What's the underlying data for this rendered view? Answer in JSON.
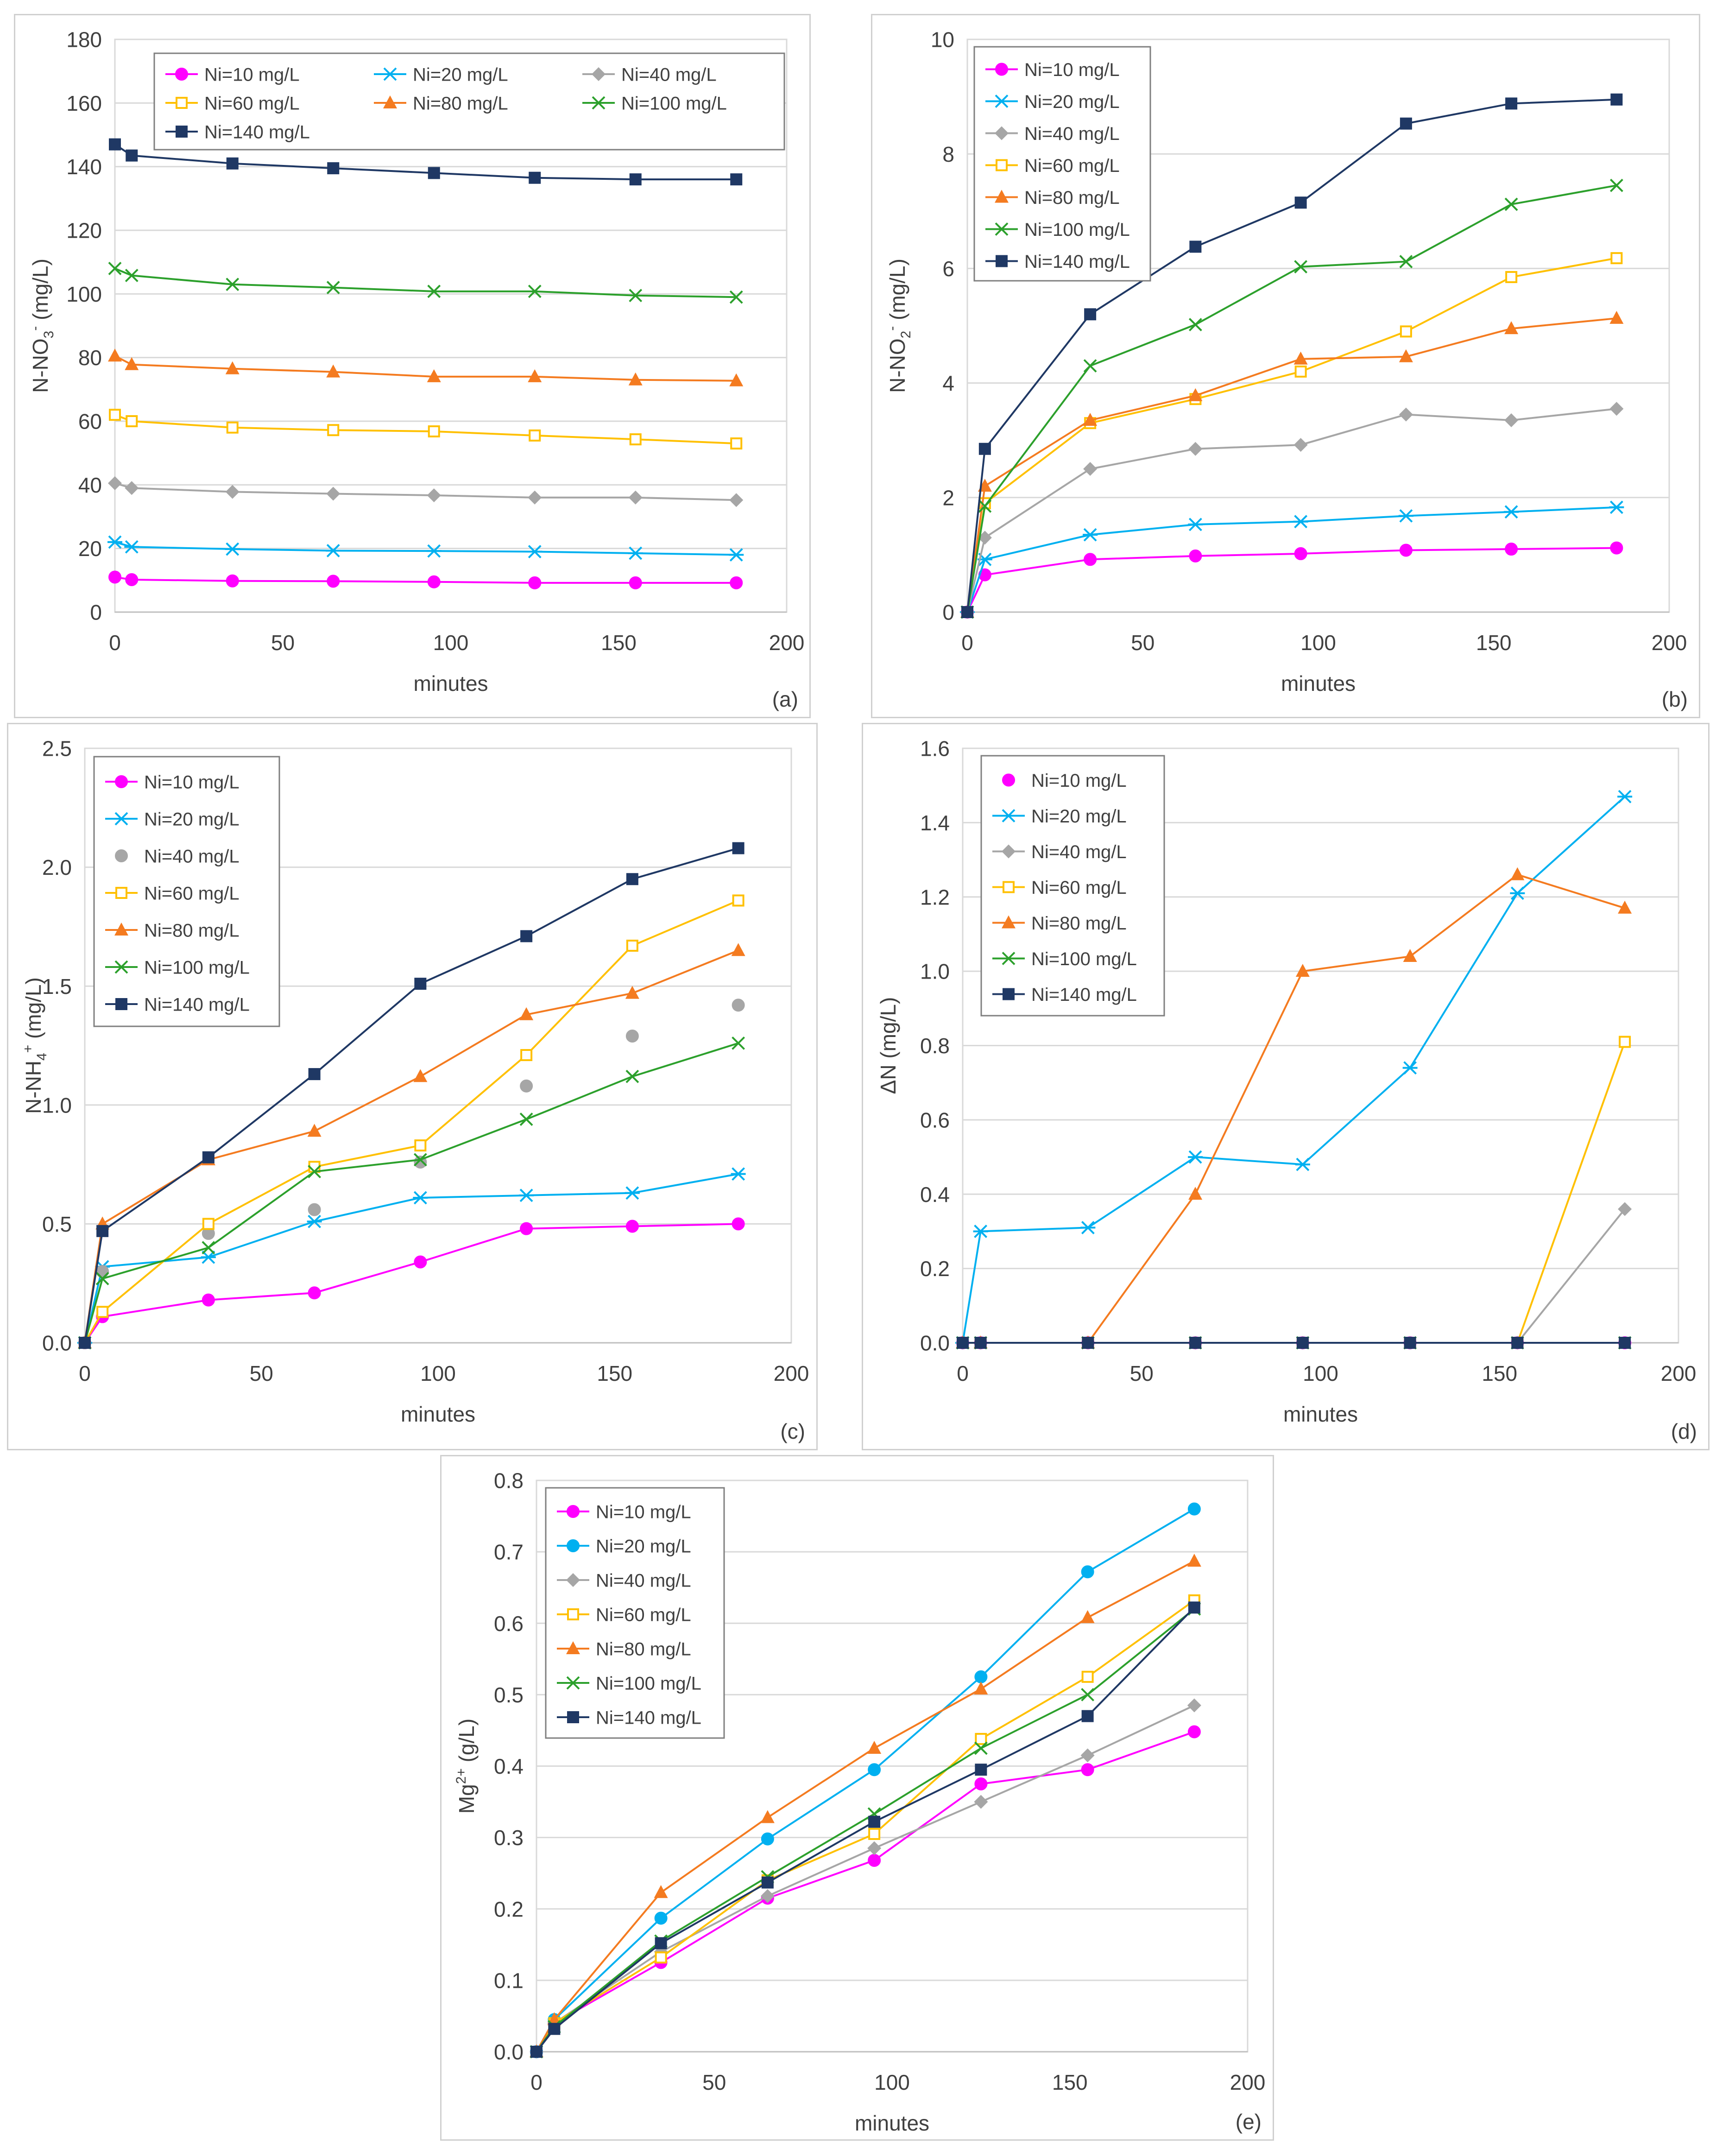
{
  "chart_data": [
    {
      "id": "a",
      "type": "line",
      "panel_label": "(a)",
      "xlabel": "minutes",
      "ylabel": "N-NO3- (mg/L)",
      "ylabel_base": "N-NO",
      "ylabel_sub": "3",
      "ylabel_sup": "-",
      "ylabel_tail": " (mg/L)",
      "xlim": [
        0,
        200
      ],
      "xticks": [
        0,
        50,
        100,
        150,
        200
      ],
      "ylim": [
        0,
        180
      ],
      "yticks": [
        0,
        20,
        40,
        60,
        80,
        100,
        120,
        140,
        160,
        180
      ],
      "ytick_labels": [
        "0",
        "20",
        "40",
        "60",
        "80",
        "100",
        "120",
        "140",
        "160",
        "180"
      ],
      "legend_columns": 3,
      "x": [
        0,
        5,
        35,
        65,
        95,
        125,
        155,
        185
      ],
      "series": [
        {
          "name": "Ni=10 mg/L",
          "color": "#ff00ff",
          "marker": "circle",
          "values": [
            11,
            10.2,
            9.8,
            9.7,
            9.5,
            9.2,
            9.2,
            9.2
          ]
        },
        {
          "name": "Ni=20 mg/L",
          "color": "#00b0f0",
          "marker": "asterisk",
          "values": [
            22,
            20.5,
            19.8,
            19.3,
            19.2,
            19,
            18.5,
            18
          ]
        },
        {
          "name": "Ni=40 mg/L",
          "color": "#a6a6a6",
          "marker": "diamond",
          "values": [
            40.5,
            39,
            37.8,
            37.2,
            36.7,
            36,
            36,
            35.2
          ]
        },
        {
          "name": "Ni=60 mg/L",
          "color": "#ffc000",
          "marker": "square-open",
          "values": [
            62,
            60,
            58,
            57.2,
            56.8,
            55.5,
            54.3,
            53
          ]
        },
        {
          "name": "Ni=80 mg/L",
          "color": "#f47b20",
          "marker": "triangle",
          "values": [
            80.5,
            77.8,
            76.5,
            75.5,
            74,
            74,
            73,
            72.7
          ]
        },
        {
          "name": "Ni=100 mg/L",
          "color": "#2ca02c",
          "marker": "x",
          "values": [
            108,
            105.8,
            103,
            102,
            100.8,
            100.8,
            99.5,
            99
          ]
        },
        {
          "name": "Ni=140 mg/L",
          "color": "#1f3864",
          "marker": "square",
          "values": [
            147,
            143.5,
            141,
            139.5,
            138,
            136.5,
            136,
            136
          ]
        }
      ]
    },
    {
      "id": "b",
      "type": "line",
      "panel_label": "(b)",
      "xlabel": "minutes",
      "ylabel": "N-NO2- (mg/L)",
      "ylabel_base": "N-NO",
      "ylabel_sub": "2",
      "ylabel_sup": "-",
      "ylabel_tail": " (mg/L)",
      "xlim": [
        0,
        200
      ],
      "xticks": [
        0,
        50,
        100,
        150,
        200
      ],
      "ylim": [
        0,
        10
      ],
      "yticks": [
        0,
        2,
        4,
        6,
        8,
        10
      ],
      "ytick_labels": [
        "0",
        "2",
        "4",
        "6",
        "8",
        "10"
      ],
      "legend_columns": 1,
      "x": [
        0,
        5,
        35,
        65,
        95,
        125,
        155,
        185
      ],
      "series": [
        {
          "name": "Ni=10 mg/L",
          "color": "#ff00ff",
          "marker": "circle",
          "values": [
            0,
            0.65,
            0.92,
            0.98,
            1.02,
            1.08,
            1.1,
            1.12
          ]
        },
        {
          "name": "Ni=20 mg/L",
          "color": "#00b0f0",
          "marker": "asterisk",
          "values": [
            0,
            0.92,
            1.35,
            1.53,
            1.58,
            1.68,
            1.75,
            1.83
          ]
        },
        {
          "name": "Ni=40 mg/L",
          "color": "#a6a6a6",
          "marker": "diamond",
          "values": [
            0,
            1.3,
            2.5,
            2.85,
            2.92,
            3.45,
            3.35,
            3.55
          ]
        },
        {
          "name": "Ni=60 mg/L",
          "color": "#ffc000",
          "marker": "square-open",
          "values": [
            0,
            1.9,
            3.3,
            3.72,
            4.2,
            4.9,
            5.85,
            6.18
          ]
        },
        {
          "name": "Ni=80 mg/L",
          "color": "#f47b20",
          "marker": "triangle",
          "values": [
            0,
            2.2,
            3.35,
            3.78,
            4.42,
            4.46,
            4.95,
            5.13
          ]
        },
        {
          "name": "Ni=100 mg/L",
          "color": "#2ca02c",
          "marker": "x",
          "values": [
            0,
            1.85,
            4.3,
            5.02,
            6.03,
            6.12,
            7.12,
            7.45
          ]
        },
        {
          "name": "Ni=140 mg/L",
          "color": "#1f3864",
          "marker": "square",
          "values": [
            0,
            2.85,
            5.2,
            6.38,
            7.15,
            8.53,
            8.88,
            8.95
          ]
        }
      ]
    },
    {
      "id": "c",
      "type": "line",
      "panel_label": "(c)",
      "xlabel": "minutes",
      "ylabel": "N-NH4+ (mg/L)",
      "ylabel_base": "N-NH",
      "ylabel_sub": "4",
      "ylabel_sup": "+",
      "ylabel_tail": " (mg/L)",
      "xlim": [
        0,
        200
      ],
      "xticks": [
        0,
        50,
        100,
        150,
        200
      ],
      "ylim": [
        0,
        2.5
      ],
      "yticks": [
        0,
        0.5,
        1.0,
        1.5,
        2.0,
        2.5
      ],
      "ytick_labels": [
        "0.0",
        "0.5",
        "1.0",
        "1.5",
        "2.0",
        "2.5"
      ],
      "legend_columns": 1,
      "x": [
        0,
        5,
        35,
        65,
        95,
        125,
        155,
        185
      ],
      "series": [
        {
          "name": "Ni=10 mg/L",
          "color": "#ff00ff",
          "marker": "circle",
          "values": [
            0,
            0.11,
            0.18,
            0.21,
            0.34,
            0.48,
            0.49,
            0.5
          ]
        },
        {
          "name": "Ni=20 mg/L",
          "color": "#00b0f0",
          "marker": "asterisk",
          "values": [
            0,
            0.32,
            0.36,
            0.51,
            0.61,
            0.62,
            0.63,
            0.71
          ]
        },
        {
          "name": "Ni=40 mg/L",
          "color": "#a6a6a6",
          "marker": "dot",
          "line": false,
          "values": [
            0,
            0.3,
            0.46,
            0.56,
            0.76,
            1.08,
            1.29,
            1.42
          ]
        },
        {
          "name": "Ni=60 mg/L",
          "color": "#ffc000",
          "marker": "square-open",
          "values": [
            0,
            0.13,
            0.5,
            0.74,
            0.83,
            1.21,
            1.67,
            1.86
          ]
        },
        {
          "name": "Ni=80 mg/L",
          "color": "#f47b20",
          "marker": "triangle",
          "values": [
            0,
            0.5,
            0.77,
            0.89,
            1.12,
            1.38,
            1.47,
            1.65
          ]
        },
        {
          "name": "Ni=100 mg/L",
          "color": "#2ca02c",
          "marker": "x",
          "values": [
            0,
            0.27,
            0.4,
            0.72,
            0.77,
            0.94,
            1.12,
            1.26
          ]
        },
        {
          "name": "Ni=140 mg/L",
          "color": "#1f3864",
          "marker": "square",
          "values": [
            0,
            0.47,
            0.78,
            1.13,
            1.51,
            1.71,
            1.95,
            2.08
          ]
        }
      ]
    },
    {
      "id": "d",
      "type": "line",
      "panel_label": "(d)",
      "xlabel": "minutes",
      "ylabel": "ΔN (mg/L)",
      "ylabel_base": "ΔN (mg/L)",
      "ylabel_sub": "",
      "ylabel_sup": "",
      "ylabel_tail": "",
      "xlim": [
        0,
        200
      ],
      "xticks": [
        0,
        50,
        100,
        150,
        200
      ],
      "ylim": [
        0,
        1.6
      ],
      "yticks": [
        0,
        0.2,
        0.4,
        0.6,
        0.8,
        1.0,
        1.2,
        1.4,
        1.6
      ],
      "ytick_labels": [
        "0.0",
        "0.2",
        "0.4",
        "0.6",
        "0.8",
        "1.0",
        "1.2",
        "1.4",
        "1.6"
      ],
      "legend_columns": 1,
      "x": [
        0,
        5,
        35,
        65,
        95,
        125,
        155,
        185
      ],
      "series": [
        {
          "name": "Ni=10 mg/L",
          "color": "#ff00ff",
          "marker": "circle",
          "line": false,
          "values": [
            0,
            0,
            0,
            0,
            0,
            0,
            0,
            0
          ]
        },
        {
          "name": "Ni=20 mg/L",
          "color": "#00b0f0",
          "marker": "asterisk",
          "values": [
            0,
            0.3,
            0.31,
            0.5,
            0.48,
            0.74,
            1.21,
            1.47
          ]
        },
        {
          "name": "Ni=40 mg/L",
          "color": "#a6a6a6",
          "marker": "diamond",
          "values": [
            0,
            0,
            0,
            0,
            0,
            0,
            0,
            0.36
          ]
        },
        {
          "name": "Ni=60 mg/L",
          "color": "#ffc000",
          "marker": "square-open",
          "values": [
            0,
            0,
            0,
            0,
            0,
            0,
            0,
            0.81
          ]
        },
        {
          "name": "Ni=80 mg/L",
          "color": "#f47b20",
          "marker": "triangle",
          "values": [
            0,
            0,
            0,
            0.4,
            1.0,
            1.04,
            1.26,
            1.17
          ]
        },
        {
          "name": "Ni=100 mg/L",
          "color": "#2ca02c",
          "marker": "x",
          "values": [
            0,
            0,
            0,
            0,
            0,
            0,
            0,
            0
          ]
        },
        {
          "name": "Ni=140 mg/L",
          "color": "#1f3864",
          "marker": "square",
          "values": [
            0,
            0,
            0,
            0,
            0,
            0,
            0,
            0
          ]
        }
      ]
    },
    {
      "id": "e",
      "type": "line",
      "panel_label": "(e)",
      "xlabel": "minutes",
      "ylabel": "Mg2+ (g/L)",
      "ylabel_base": "Mg",
      "ylabel_sub": "",
      "ylabel_sup": "2+",
      "ylabel_tail": " (g/L)",
      "xlim": [
        0,
        200
      ],
      "xticks": [
        0,
        50,
        100,
        150,
        200
      ],
      "ylim": [
        0,
        0.8
      ],
      "yticks": [
        0,
        0.1,
        0.2,
        0.3,
        0.4,
        0.5,
        0.6,
        0.7,
        0.8
      ],
      "ytick_labels": [
        "0.0",
        "0.1",
        "0.2",
        "0.3",
        "0.4",
        "0.5",
        "0.6",
        "0.7",
        "0.8"
      ],
      "legend_columns": 1,
      "x": [
        0,
        5,
        35,
        65,
        95,
        125,
        155,
        185
      ],
      "series": [
        {
          "name": "Ni=10 mg/L",
          "color": "#ff00ff",
          "marker": "circle",
          "values": [
            0,
            0.04,
            0.125,
            0.215,
            0.268,
            0.375,
            0.395,
            0.448
          ]
        },
        {
          "name": "Ni=20 mg/L",
          "color": "#00b0f0",
          "marker": "circle",
          "values": [
            0,
            0.045,
            0.187,
            0.298,
            0.395,
            0.525,
            0.672,
            0.76
          ]
        },
        {
          "name": "Ni=40 mg/L",
          "color": "#a6a6a6",
          "marker": "diamond",
          "values": [
            0,
            0.04,
            0.14,
            0.218,
            0.285,
            0.35,
            0.415,
            0.485
          ]
        },
        {
          "name": "Ni=60 mg/L",
          "color": "#ffc000",
          "marker": "square-open",
          "values": [
            0,
            0.04,
            0.132,
            0.24,
            0.305,
            0.438,
            0.525,
            0.632
          ]
        },
        {
          "name": "Ni=80 mg/L",
          "color": "#f47b20",
          "marker": "triangle",
          "values": [
            0,
            0.045,
            0.223,
            0.328,
            0.425,
            0.508,
            0.608,
            0.687
          ]
        },
        {
          "name": "Ni=100 mg/L",
          "color": "#2ca02c",
          "marker": "x",
          "values": [
            0,
            0.035,
            0.155,
            0.245,
            0.333,
            0.425,
            0.5,
            0.62
          ]
        },
        {
          "name": "Ni=140 mg/L",
          "color": "#1f3864",
          "marker": "square",
          "values": [
            0,
            0.032,
            0.152,
            0.237,
            0.322,
            0.395,
            0.47,
            0.622
          ]
        }
      ]
    }
  ]
}
